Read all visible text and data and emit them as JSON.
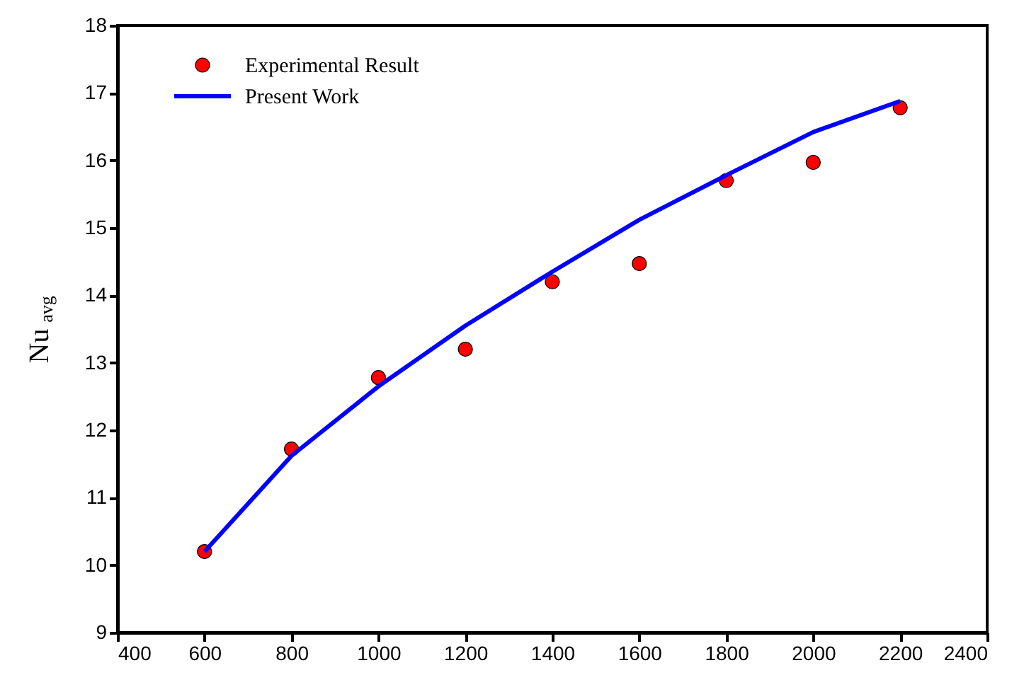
{
  "chart_data": {
    "type": "scatter",
    "ylabel": "Nu$_{avg}$",
    "x": [
      600,
      800,
      1000,
      1200,
      1400,
      1600,
      1800,
      2000,
      2200
    ],
    "series": [
      {
        "name": "Experimental Result",
        "color": "#ff0000",
        "marker": "circle",
        "values": [
          10.2,
          11.72,
          12.78,
          13.2,
          14.2,
          14.47,
          15.7,
          15.97,
          16.78
        ]
      },
      {
        "name": "Present Work",
        "type": "line",
        "color": "#0000ff",
        "marker": "none",
        "line_style": "solid",
        "values": [
          10.2,
          11.62,
          12.65,
          13.55,
          14.35,
          15.12,
          15.78,
          16.42,
          16.88
        ]
      }
    ],
    "xlim": [
      400,
      2400
    ],
    "xticks": [
      400,
      600,
      800,
      1000,
      1200,
      1400,
      1600,
      1800,
      2000,
      2200,
      2400
    ],
    "ylim": [
      9,
      18
    ],
    "yticks": [
      9,
      10,
      11,
      12,
      13,
      14,
      15,
      16,
      17,
      18
    ],
    "grid": false,
    "legend": "top left"
  }
}
